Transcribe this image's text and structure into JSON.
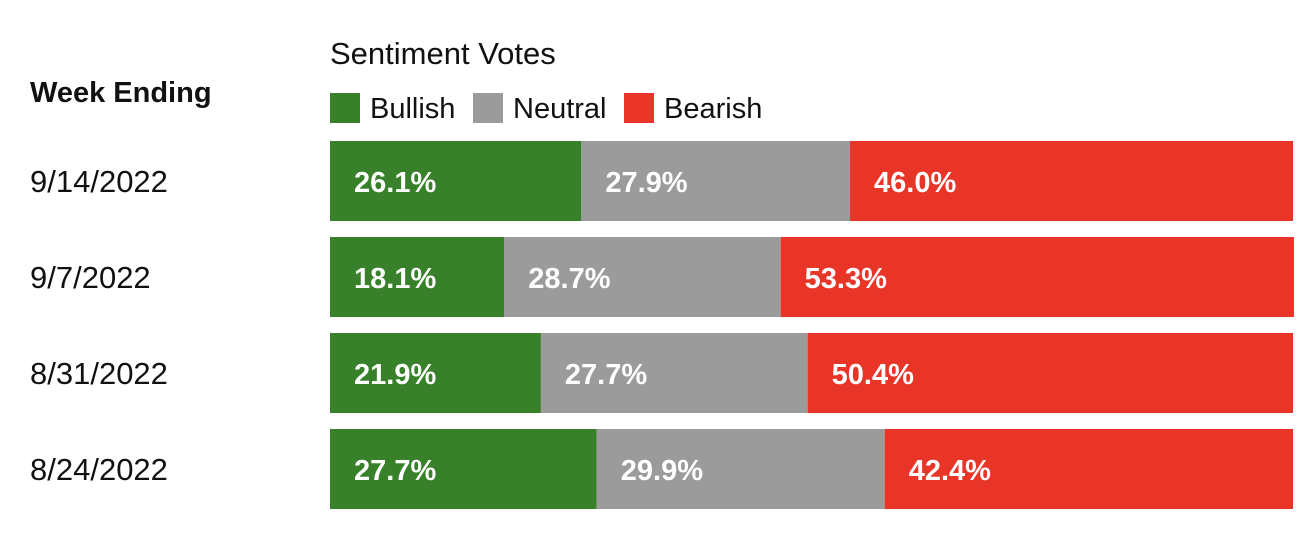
{
  "chart_data": {
    "type": "bar",
    "orientation": "horizontal",
    "stacked": true,
    "title": "Sentiment Votes",
    "category_header": "Week Ending",
    "categories": [
      "9/14/2022",
      "9/7/2022",
      "8/31/2022",
      "8/24/2022"
    ],
    "series": [
      {
        "name": "Bullish",
        "color": "#38802a",
        "values": [
          26.1,
          18.1,
          21.9,
          27.7
        ],
        "labels": [
          "26.1%",
          "18.1%",
          "21.9%",
          "27.7%"
        ]
      },
      {
        "name": "Neutral",
        "color": "#9b9b9b",
        "values": [
          27.9,
          28.7,
          27.7,
          29.9
        ],
        "labels": [
          "27.9%",
          "28.7%",
          "27.7%",
          "29.9%"
        ]
      },
      {
        "name": "Bearish",
        "color": "#e93527",
        "values": [
          46.0,
          53.3,
          50.4,
          42.4
        ],
        "labels": [
          "46.0%",
          "53.3%",
          "50.4%",
          "42.4%"
        ]
      }
    ],
    "xlim": [
      0,
      100
    ],
    "unit": "%",
    "legend_position": "top"
  }
}
